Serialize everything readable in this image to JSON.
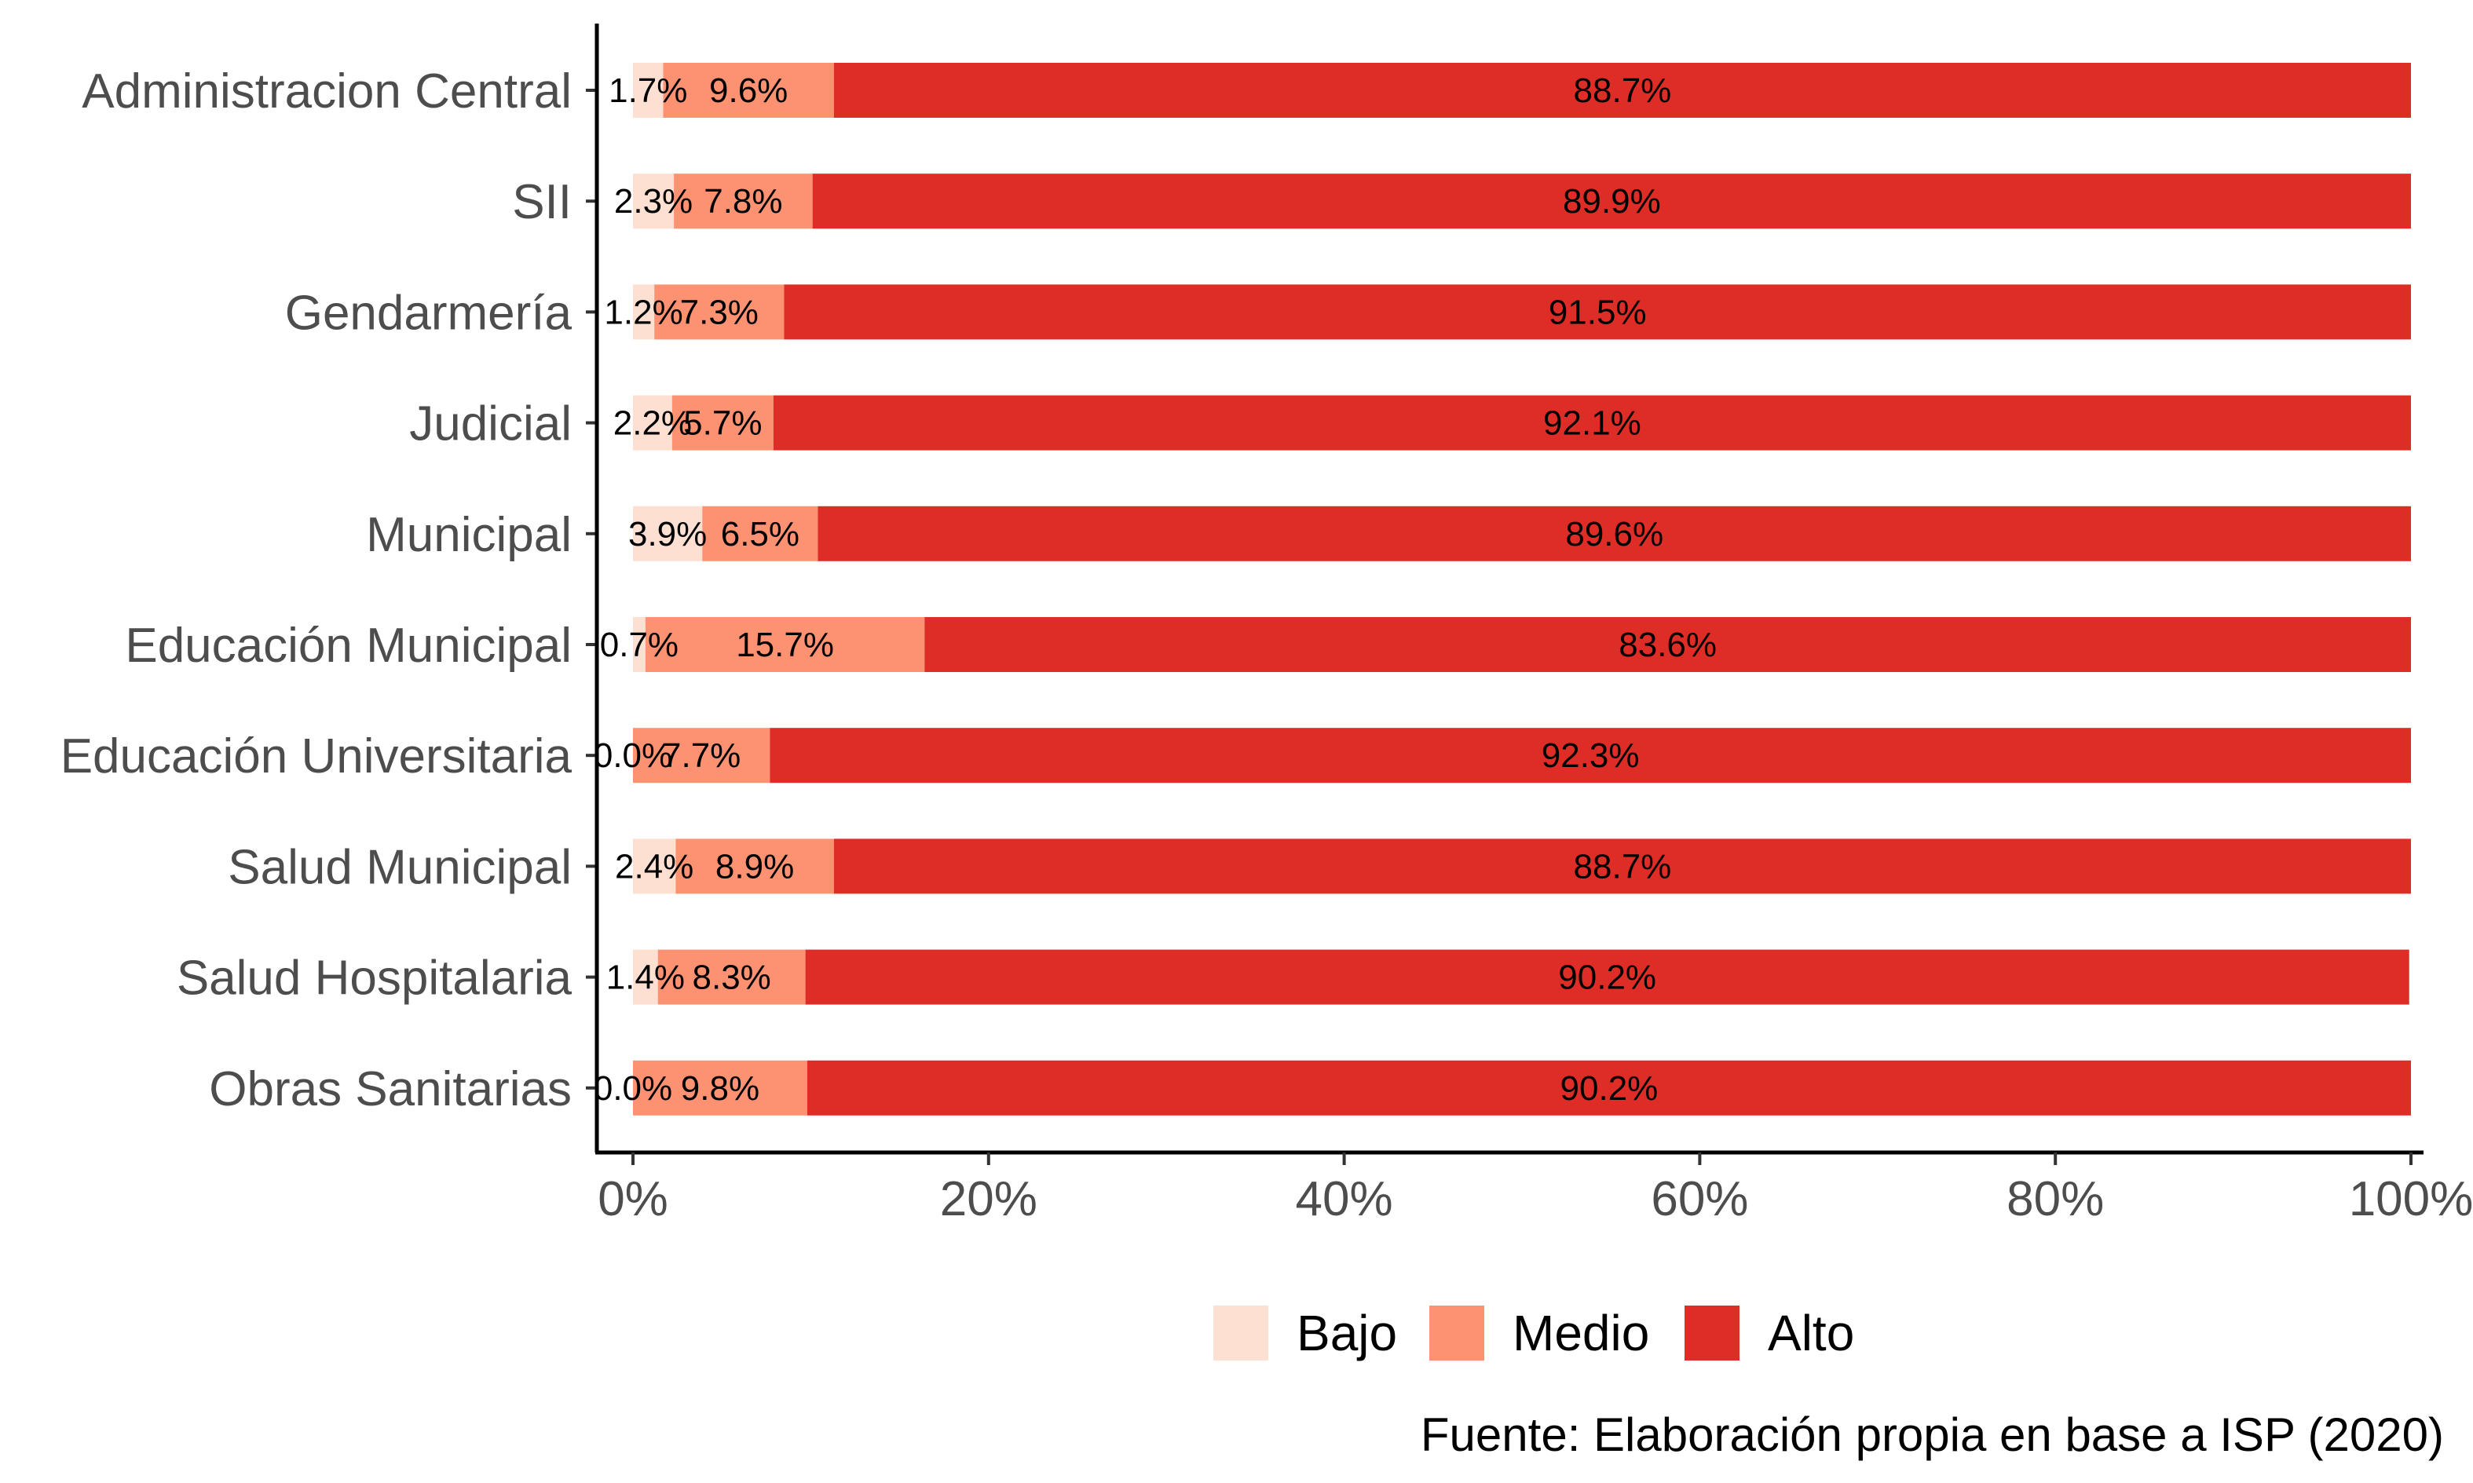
{
  "chart_data": {
    "type": "bar",
    "orientation": "horizontal",
    "stacked": true,
    "categories": [
      "Administracion Central",
      "SII",
      "Gendarmería",
      "Judicial",
      "Municipal",
      "Educación Municipal",
      "Educación Universitaria",
      "Salud Municipal",
      "Salud Hospitalaria",
      "Obras Sanitarias"
    ],
    "series": [
      {
        "name": "Bajo",
        "color": "#fee0d2",
        "values": [
          1.7,
          2.3,
          1.2,
          2.2,
          3.9,
          0.7,
          0.0,
          2.4,
          1.4,
          0.0
        ],
        "labels": [
          "1.7%",
          "2.3%",
          "1.2%",
          "2.2%",
          "3.9%",
          "0.7%",
          "0.0%",
          "2.4%",
          "1.4%",
          "0.0%"
        ]
      },
      {
        "name": "Medio",
        "color": "#fc9272",
        "values": [
          9.6,
          7.8,
          7.3,
          5.7,
          6.5,
          15.7,
          7.7,
          8.9,
          8.3,
          9.8
        ],
        "labels": [
          "9.6%",
          "7.8%",
          "7.3%",
          "5.7%",
          "6.5%",
          "15.7%",
          "7.7%",
          "8.9%",
          "8.3%",
          "9.8%"
        ]
      },
      {
        "name": "Alto",
        "color": "#de2d26",
        "values": [
          88.7,
          89.9,
          91.5,
          92.1,
          89.6,
          83.6,
          92.3,
          88.7,
          90.2,
          90.2
        ],
        "labels": [
          "88.7%",
          "89.9%",
          "91.5%",
          "92.1%",
          "89.6%",
          "83.6%",
          "92.3%",
          "88.7%",
          "90.2%",
          "90.2%"
        ]
      }
    ],
    "x_ticks": [
      "0%",
      "20%",
      "40%",
      "60%",
      "80%",
      "100%"
    ],
    "xlim": [
      0,
      100
    ],
    "xlabel": "",
    "ylabel": "",
    "legend_position": "bottom",
    "grid": false,
    "caption": "Fuente: Elaboración propia en base a ISP (2020)"
  }
}
